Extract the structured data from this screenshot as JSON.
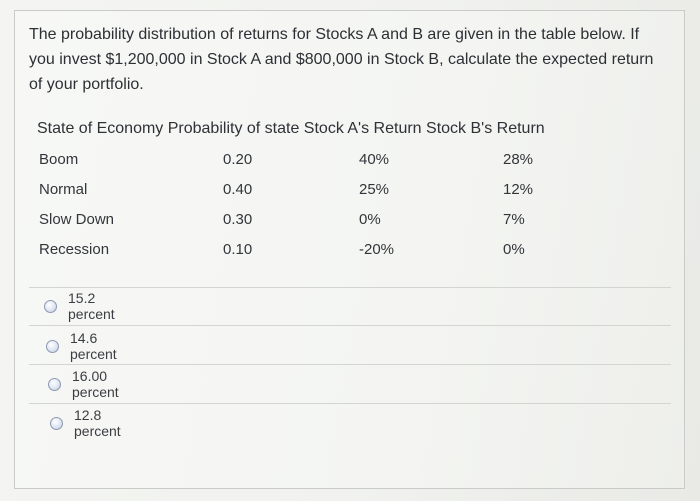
{
  "question": {
    "text": "The probability distribution of returns for Stocks A and B are given in the table below. If you invest $1,200,000 in Stock A and $800,000 in Stock B, calculate the expected return of your portfolio."
  },
  "table": {
    "header": "State of Economy Probability of state Stock A's Return Stock B's Return",
    "rows": [
      {
        "state": "Boom",
        "probability": "0.20",
        "stock_a": "40%",
        "stock_b": "28%"
      },
      {
        "state": "Normal",
        "probability": "0.40",
        "stock_a": "25%",
        "stock_b": "12%"
      },
      {
        "state": "Slow Down",
        "probability": "0.30",
        "stock_a": "0%",
        "stock_b": "7%"
      },
      {
        "state": "Recession",
        "probability": "0.10",
        "stock_a": "-20%",
        "stock_b": "0%"
      }
    ]
  },
  "options": [
    {
      "label": "15.2 percent"
    },
    {
      "label": "14.6 percent"
    },
    {
      "label": "16.00 percent"
    },
    {
      "label": "12.8 percent"
    }
  ]
}
